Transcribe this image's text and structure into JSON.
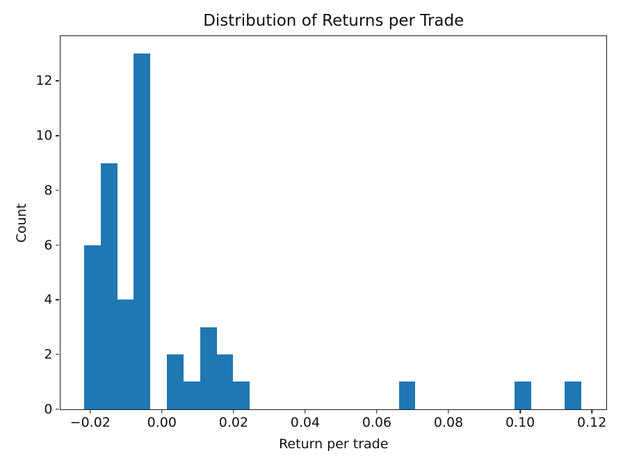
{
  "colors": {
    "bar": "#1f77b4",
    "background": "#ffffff",
    "axis": "#1b1b1b",
    "text": "#111111"
  },
  "chart_data": {
    "type": "bar",
    "subtype": "histogram",
    "title": "Distribution of Returns per Trade",
    "xlabel": "Return per trade",
    "ylabel": "Count",
    "bar_color": "#1f77b4",
    "grid": false,
    "legend": false,
    "xlim": [
      -0.0284,
      0.12404
    ],
    "ylim": [
      0,
      13.65
    ],
    "x_ticks": [
      -0.02,
      0.0,
      0.02,
      0.04,
      0.06,
      0.08,
      0.1,
      0.12
    ],
    "x_tick_labels": [
      "−0.02",
      "0.00",
      "0.02",
      "0.04",
      "0.06",
      "0.08",
      "0.10",
      "0.12"
    ],
    "y_ticks": [
      0,
      2,
      4,
      6,
      8,
      10,
      12
    ],
    "y_tick_labels": [
      "0",
      "2",
      "4",
      "6",
      "8",
      "10",
      "12"
    ],
    "bin_edges": [
      -0.0217,
      -0.017077,
      -0.012454,
      -0.007831,
      -0.003208,
      0.001415,
      0.006038,
      0.010661,
      0.015284,
      0.019907,
      0.02453,
      0.029153,
      0.033776,
      0.038399,
      0.043022,
      0.047645,
      0.052268,
      0.056891,
      0.061514,
      0.066137,
      0.07076,
      0.075383,
      0.080006,
      0.084629,
      0.089252,
      0.093875,
      0.098498,
      0.103121,
      0.107744,
      0.112367,
      0.11699
    ],
    "counts": [
      6,
      9,
      4,
      13,
      0,
      2,
      1,
      3,
      2,
      1,
      0,
      0,
      0,
      0,
      0,
      0,
      0,
      0,
      0,
      1,
      0,
      0,
      0,
      0,
      0,
      0,
      1,
      0,
      0,
      1
    ]
  }
}
